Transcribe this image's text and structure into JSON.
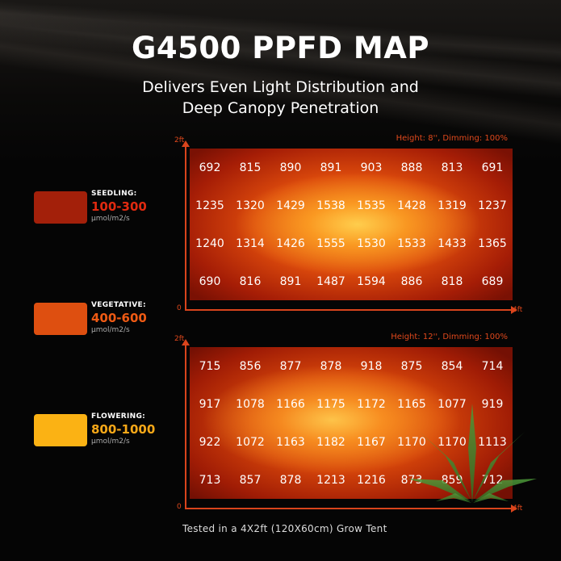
{
  "title": "G4500 PPFD MAP",
  "subtitle_line1": "Delivers Even Light Distribution and",
  "subtitle_line2": "Deep Canopy Penetration",
  "legend": [
    {
      "name": "SEEDLING:",
      "range": "100-300",
      "unit": "μmol/m2/s",
      "color": "#a3200a",
      "text_color": "#e02a10"
    },
    {
      "name": "VEGETATIVE:",
      "range": "400-600",
      "unit": "μmol/m2/s",
      "color": "#de4f10",
      "text_color": "#ee5a14"
    },
    {
      "name": "FLOWERING:",
      "range": "800-1000",
      "unit": "μmol/m2/s",
      "color": "#fbb214",
      "text_color": "#f7a818"
    }
  ],
  "maps": [
    {
      "info": "Height: 8'', Dimming: 100%",
      "y_max_label": "2ft",
      "origin_label": "0",
      "x_max_label": "4ft",
      "rows": [
        [
          "692",
          "815",
          "890",
          "891",
          "903",
          "888",
          "813",
          "691"
        ],
        [
          "1235",
          "1320",
          "1429",
          "1538",
          "1535",
          "1428",
          "1319",
          "1237"
        ],
        [
          "1240",
          "1314",
          "1426",
          "1555",
          "1530",
          "1533",
          "1433",
          "1365"
        ],
        [
          "690",
          "816",
          "891",
          "1487",
          "1594",
          "886",
          "818",
          "689"
        ]
      ]
    },
    {
      "info": "Height: 12'', Dimming: 100%",
      "y_max_label": "2ft",
      "origin_label": "0",
      "x_max_label": "4ft",
      "rows": [
        [
          "715",
          "856",
          "877",
          "878",
          "918",
          "875",
          "854",
          "714"
        ],
        [
          "917",
          "1078",
          "1166",
          "1175",
          "1172",
          "1165",
          "1077",
          "919"
        ],
        [
          "922",
          "1072",
          "1163",
          "1182",
          "1167",
          "1170",
          "1170",
          "1113"
        ],
        [
          "713",
          "857",
          "878",
          "1213",
          "1216",
          "873",
          "859",
          "712"
        ]
      ]
    }
  ],
  "footer": "Tested in a 4X2ft (120X60cm) Grow Tent",
  "accent_color": "#e0481c",
  "leaf_icon": "cannabis-leaf-logo"
}
